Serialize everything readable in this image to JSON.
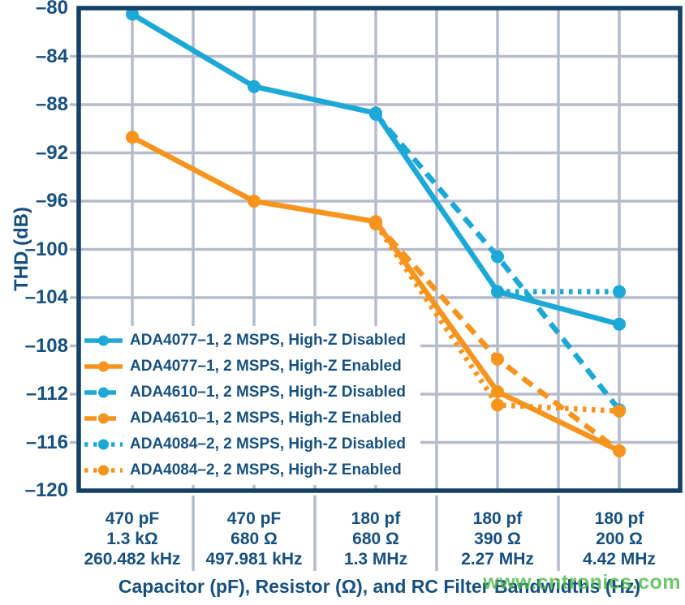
{
  "chart_data": {
    "type": "line",
    "title": "",
    "xlabel": "Capacitor (pF), Resistor (Ω), and RC Filter Bandwidths (Hz)",
    "ylabel": "THD (dB)",
    "ylim": [
      -120,
      -80
    ],
    "ytick_step": 4,
    "ytick_labels": [
      "–80",
      "–84",
      "–88",
      "–92",
      "–96",
      "–100",
      "–104",
      "–108",
      "–112",
      "–116",
      "–120"
    ],
    "grid": true,
    "legend_position": "inside-lower-left",
    "categories": [
      [
        "470 pF",
        "1.3 kΩ",
        "260.482 kHz"
      ],
      [
        "470 pF",
        "680 Ω",
        "497.981 kHz"
      ],
      [
        "180 pf",
        "680 Ω",
        "1.3 MHz"
      ],
      [
        "180 pf",
        "390 Ω",
        "2.27 MHz"
      ],
      [
        "180 pf",
        "200 Ω",
        "4.42 MHz"
      ]
    ],
    "series": [
      {
        "name": "ADA4077–1, 2 MSPS, High-Z Disabled",
        "color": "blue",
        "style": "solid",
        "values": [
          -80.5,
          -86.5,
          -88.7,
          -103.5,
          -106.2
        ]
      },
      {
        "name": "ADA4077–1, 2 MSPS, High-Z Enabled",
        "color": "orange",
        "style": "solid",
        "values": [
          -90.7,
          -96.0,
          -97.7,
          -111.8,
          -116.7
        ]
      },
      {
        "name": "ADA4610–1, 2 MSPS, High-Z Disabled",
        "color": "blue",
        "style": "dashed",
        "values": [
          null,
          null,
          -88.8,
          -100.6,
          -113.3
        ]
      },
      {
        "name": "ADA4610–1, 2 MSPS, High-Z Enabled",
        "color": "orange",
        "style": "dashed",
        "values": [
          null,
          null,
          -97.8,
          -109.1,
          -116.7
        ]
      },
      {
        "name": "ADA4084–2, 2 MSPS, High-Z Disabled",
        "color": "blue",
        "style": "dotted",
        "values": [
          null,
          null,
          null,
          -103.5,
          -103.5
        ]
      },
      {
        "name": "ADA4084–2, 2 MSPS, High-Z Enabled",
        "color": "orange",
        "style": "dotted",
        "values": [
          null,
          null,
          -97.9,
          -112.9,
          -113.4
        ]
      }
    ]
  },
  "colors": {
    "blue": "#1CA9D8",
    "orange": "#F7941E",
    "navy_text": "#17507F",
    "navy_border": "#143F66",
    "grid": "#B6BCCB",
    "watermark_green": "#4CB748",
    "background": "#FFFFFF"
  },
  "watermark": {
    "text": "www.cntronics.com"
  }
}
